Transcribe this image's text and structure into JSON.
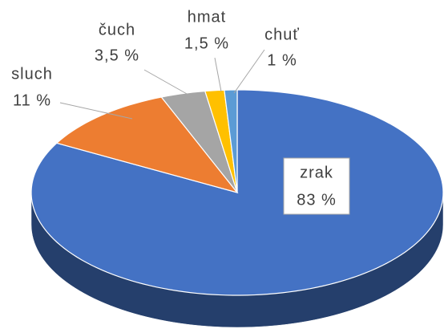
{
  "chart_data": {
    "type": "pie3d",
    "categories": [
      "zrak",
      "sluch",
      "čuch",
      "hmat",
      "chuť"
    ],
    "values": [
      83,
      11,
      3.5,
      1.5,
      1
    ],
    "value_labels": [
      "83 %",
      "11 %",
      "3,5 %",
      "1,5 %",
      "1 %"
    ],
    "colors": [
      "#4472c4",
      "#ed7d31",
      "#a5a5a5",
      "#ffc000",
      "#5b9bd5"
    ],
    "start_angle": 0,
    "direction": "clockwise"
  }
}
